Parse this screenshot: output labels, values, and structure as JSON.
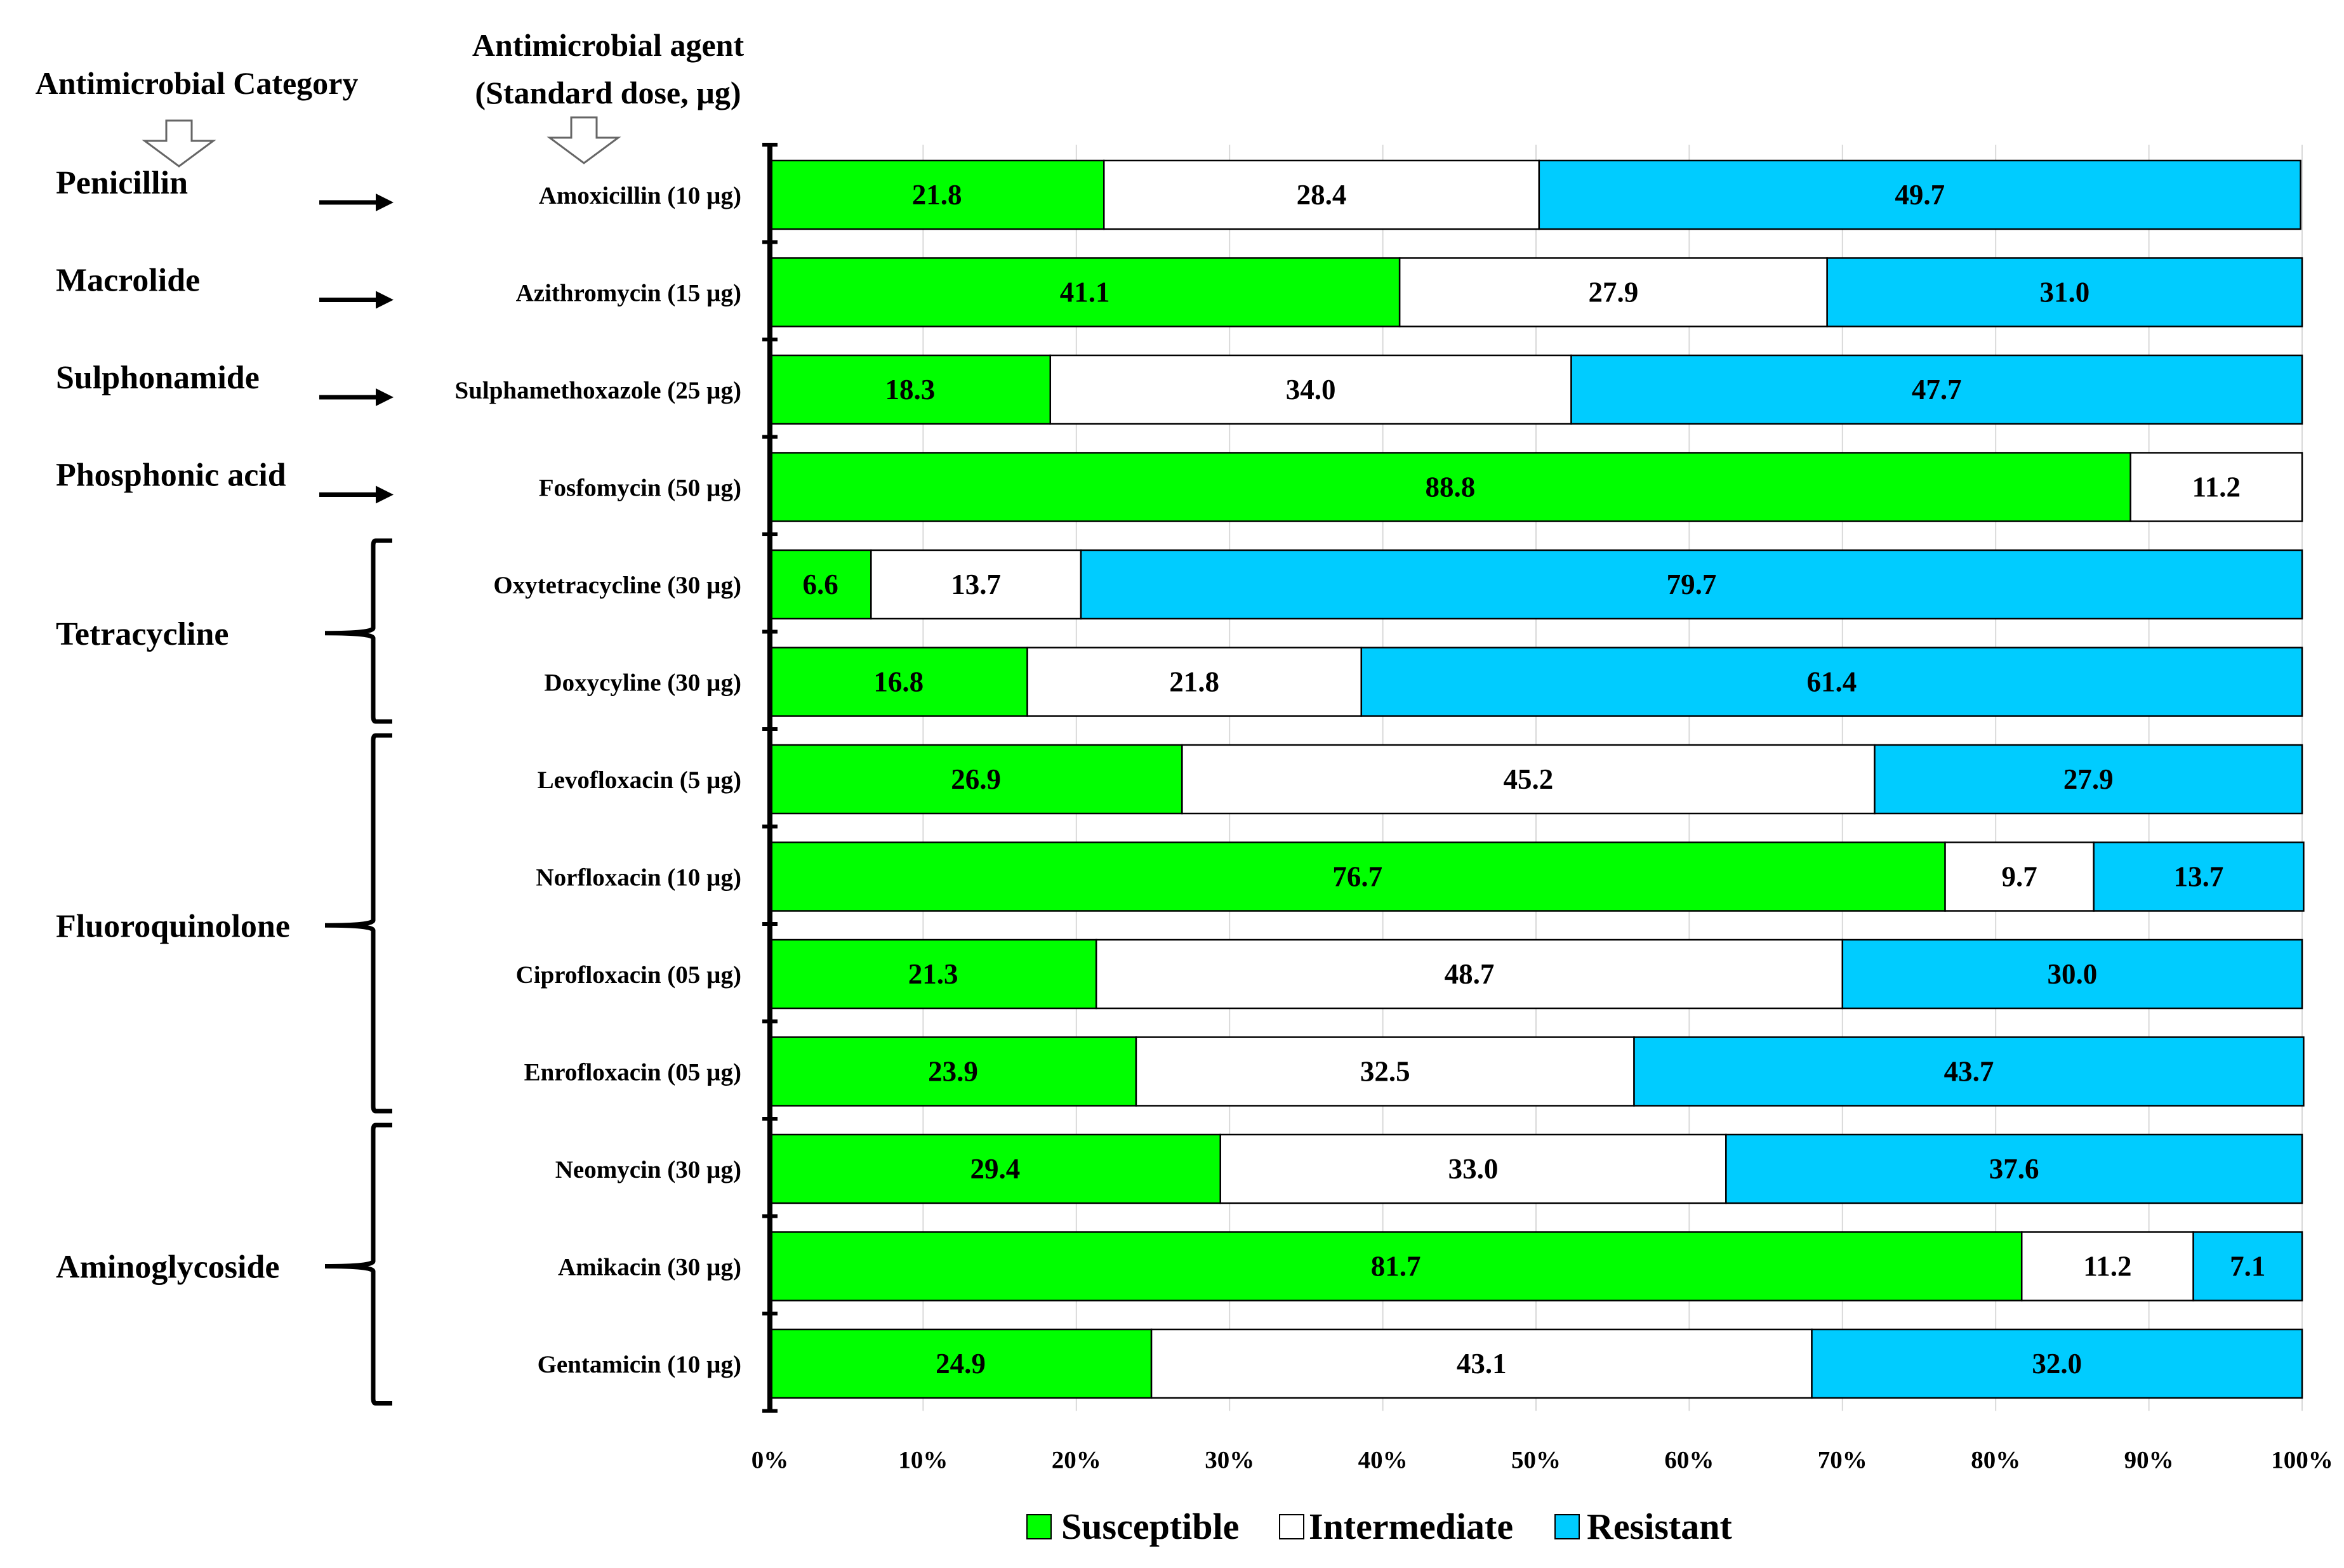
{
  "colors": {
    "susceptible": "#00ff00",
    "intermediate": "#ffffff",
    "resistant": "#00ccff"
  },
  "header": {
    "category": "Antimicrobial  Category",
    "agent_line1": "Antimicrobial  agent",
    "agent_line2": "(Standard  dose, µg)"
  },
  "chart_data": {
    "type": "bar",
    "orientation": "horizontal",
    "stacked": "percent",
    "categories": [
      "Amoxicillin  (10 µg)",
      "Azithromycin  (15 µg)",
      "Sulphamethoxazole  (25 µg)",
      "Fosfomycin  (50 µg)",
      "Oxytetracycline  (30 µg)",
      "Doxycyline  (30 µg)",
      "Levofloxacin  (5 µg)",
      "Norfloxacin  (10 µg)",
      "Ciprofloxacin  (05 µg)",
      "Enrofloxacin  (05 µg)",
      "Neomycin  (30 µg)",
      "Amikacin  (30 µg)",
      "Gentamicin  (10 µg)"
    ],
    "series": [
      {
        "name": "Susceptible",
        "values": [
          21.8,
          41.1,
          18.3,
          88.8,
          6.6,
          16.8,
          26.9,
          76.7,
          21.3,
          23.9,
          29.4,
          81.7,
          24.9
        ]
      },
      {
        "name": "Intermediate",
        "values": [
          28.4,
          27.9,
          34.0,
          11.2,
          13.7,
          21.8,
          45.2,
          9.7,
          48.7,
          32.5,
          33.0,
          11.2,
          43.1
        ]
      },
      {
        "name": "Resistant",
        "values": [
          49.7,
          31.0,
          47.7,
          0,
          79.7,
          61.4,
          27.9,
          13.7,
          30.0,
          43.7,
          37.6,
          7.1,
          32.0
        ]
      }
    ],
    "x_ticks": [
      "0%",
      "10%",
      "20%",
      "30%",
      "40%",
      "50%",
      "60%",
      "70%",
      "80%",
      "90%",
      "100%"
    ],
    "xlim": [
      0,
      100
    ],
    "grid": "vertical",
    "legend": "bottom-center",
    "groups": [
      {
        "label": "Penicillin",
        "bracket": "arrow",
        "first": 0,
        "last": 0
      },
      {
        "label": "Macrolide",
        "bracket": "arrow",
        "first": 1,
        "last": 1
      },
      {
        "label": "Sulphonamide",
        "bracket": "arrow",
        "first": 2,
        "last": 2
      },
      {
        "label": "Phosphonic  acid",
        "bracket": "arrow",
        "first": 3,
        "last": 3
      },
      {
        "label": "Tetracycline",
        "bracket": "brace",
        "first": 4,
        "last": 5
      },
      {
        "label": "Fluoroquinolone",
        "bracket": "brace",
        "first": 6,
        "last": 9
      },
      {
        "label": "Aminoglycoside",
        "bracket": "brace",
        "first": 10,
        "last": 12
      }
    ]
  }
}
